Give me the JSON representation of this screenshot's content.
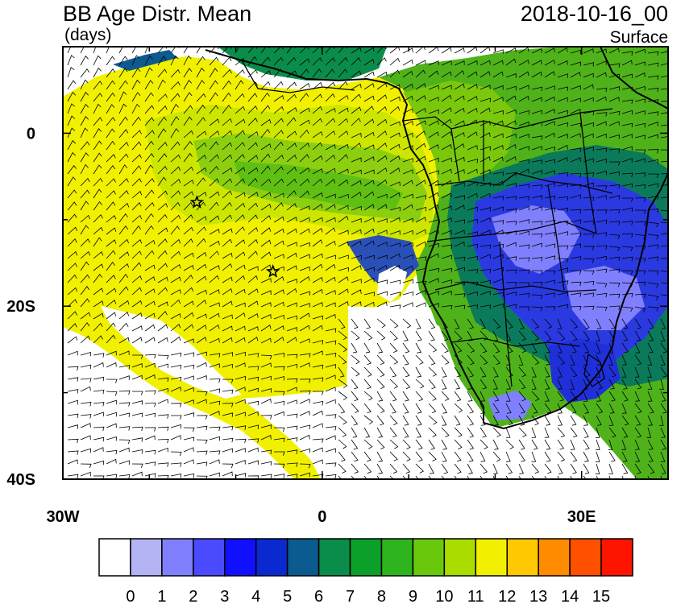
{
  "header": {
    "title": "BB Age Distr. Mean",
    "units": "(days)",
    "datetime": "2018-10-16_00",
    "level": "Surface"
  },
  "axes": {
    "x_ticks": [
      {
        "value": -30,
        "label": "30W"
      },
      {
        "value": 0,
        "label": "0"
      },
      {
        "value": 30,
        "label": "30E"
      }
    ],
    "y_ticks": [
      {
        "value": 0,
        "label": "0"
      },
      {
        "value": -20,
        "label": "20S"
      },
      {
        "value": -40,
        "label": "40S"
      }
    ],
    "lon_range": [
      -30,
      40
    ],
    "lat_range": [
      -40,
      10
    ]
  },
  "colorbar": {
    "labels": [
      "0",
      "1",
      "2",
      "3",
      "4",
      "5",
      "6",
      "7",
      "8",
      "9",
      "10",
      "11",
      "12",
      "13",
      "14",
      "15"
    ],
    "colors": [
      "#ffffff",
      "#b4b4f5",
      "#8080ff",
      "#4a4aff",
      "#1010ff",
      "#0a2ad0",
      "#0b5a90",
      "#0a8c4a",
      "#0aa02a",
      "#2eb41e",
      "#6ac80c",
      "#aadc00",
      "#f0f000",
      "#ffc800",
      "#ff8c00",
      "#ff5000",
      "#ff1400"
    ]
  },
  "markers": [
    {
      "name": "site-star-north",
      "lon": -14.5,
      "lat": -8
    },
    {
      "name": "site-star-south",
      "lon": -5.7,
      "lat": -16
    }
  ]
}
